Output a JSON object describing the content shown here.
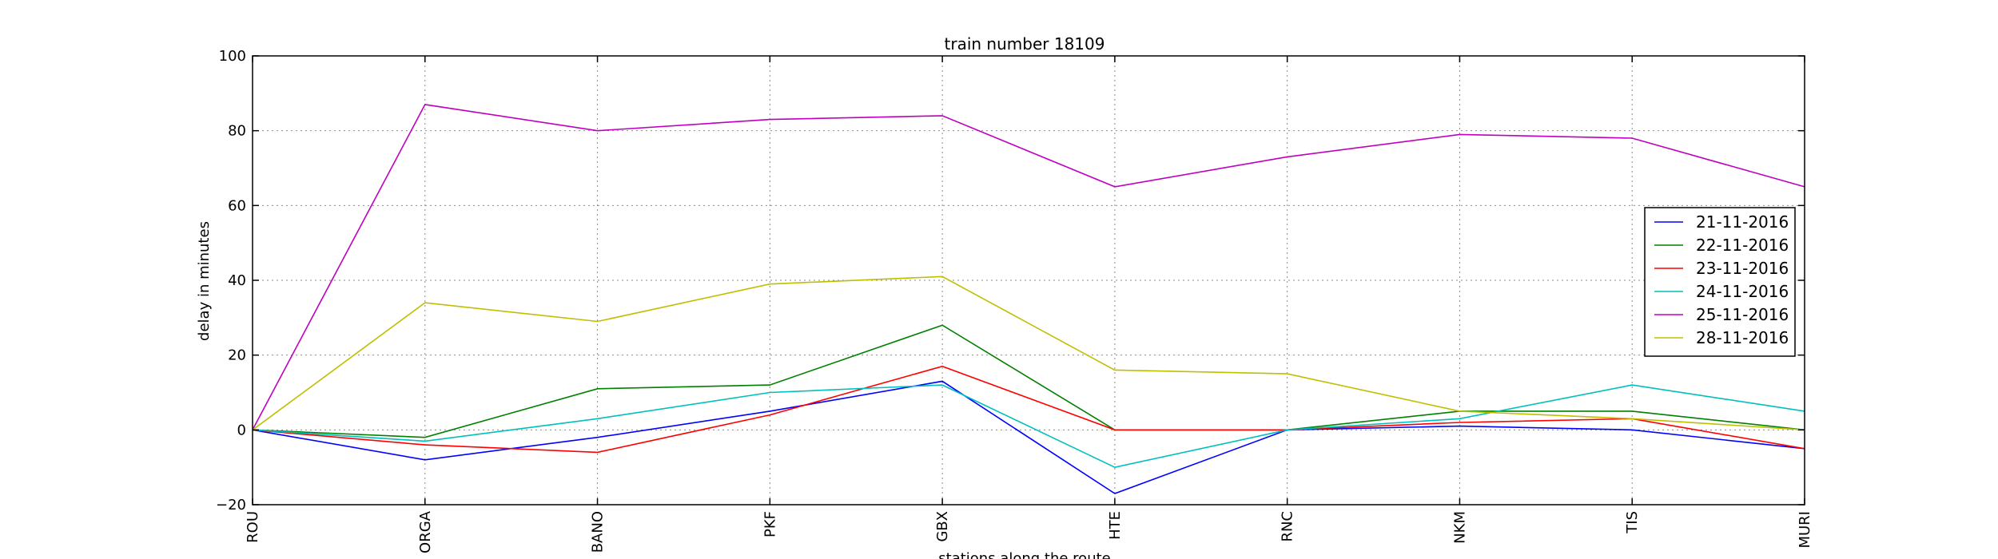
{
  "chart_data": {
    "type": "line",
    "title": "train number 18109",
    "xlabel": "stations along the route",
    "ylabel": "delay in minutes",
    "ylim": [
      -20,
      100
    ],
    "yticks": [
      -20,
      0,
      20,
      40,
      60,
      80,
      100
    ],
    "grid": true,
    "legend_position": "right",
    "categories": [
      "ROU",
      "ORGA",
      "BANO",
      "PKF",
      "GBX",
      "HTE",
      "RNC",
      "NKM",
      "TIS",
      "MURI"
    ],
    "series": [
      {
        "name": "21-11-2016",
        "color": "#0000ff",
        "values": [
          0,
          -8,
          -2,
          5,
          13,
          -17,
          0,
          1,
          0,
          -5
        ]
      },
      {
        "name": "22-11-2016",
        "color": "#008000",
        "values": [
          0,
          -2,
          11,
          12,
          28,
          0,
          0,
          5,
          5,
          0
        ]
      },
      {
        "name": "23-11-2016",
        "color": "#ff0000",
        "values": [
          0,
          -4,
          -6,
          4,
          17,
          0,
          0,
          2,
          3,
          -5
        ]
      },
      {
        "name": "24-11-2016",
        "color": "#00bfbf",
        "values": [
          0,
          -3,
          3,
          10,
          12,
          -10,
          0,
          3,
          12,
          5
        ]
      },
      {
        "name": "25-11-2016",
        "color": "#bf00bf",
        "values": [
          0,
          87,
          80,
          83,
          84,
          65,
          73,
          79,
          78,
          65
        ]
      },
      {
        "name": "28-11-2016",
        "color": "#bfbf00",
        "values": [
          0,
          34,
          29,
          39,
          41,
          16,
          15,
          5,
          3,
          0
        ]
      }
    ]
  }
}
